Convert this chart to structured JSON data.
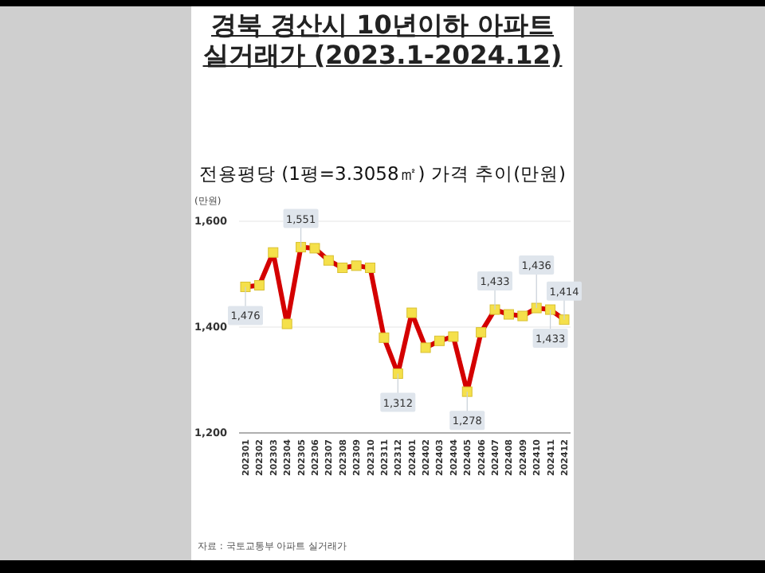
{
  "chart_data": {
    "type": "line",
    "title": "경북 경산시 10년이하 아파트 실거래가 (2023.1-2024.12)",
    "subtitle": "전용평당 (1평=3.3058㎡) 가격 추이(만원)",
    "ylabel": "(만원)",
    "categories": [
      "202301",
      "202302",
      "202303",
      "202304",
      "202305",
      "202306",
      "202307",
      "202308",
      "202309",
      "202310",
      "202311",
      "202312",
      "202401",
      "202402",
      "202403",
      "202404",
      "202405",
      "202406",
      "202407",
      "202408",
      "202409",
      "202410",
      "202411",
      "202412"
    ],
    "series": [
      {
        "color": "#d40000",
        "values": [
          1476,
          1479,
          1541,
          1406,
          1551,
          1549,
          1526,
          1512,
          1516,
          1512,
          1380,
          1312,
          1427,
          1361,
          1374,
          1382,
          1278,
          1390,
          1433,
          1424,
          1421,
          1436,
          1433,
          1414
        ],
        "value_labels": [
          "1,476",
          null,
          null,
          null,
          "1,551",
          null,
          null,
          null,
          null,
          null,
          null,
          "1,312",
          null,
          null,
          null,
          null,
          "1,278",
          null,
          "1,433",
          null,
          null,
          "1,436",
          "1,433",
          "1,414"
        ]
      }
    ],
    "marker": "square",
    "ylim": [
      1200,
      1600
    ],
    "yticks": [
      {
        "value": 1200,
        "label": "1,200"
      },
      {
        "value": 1400,
        "label": "1,400"
      },
      {
        "value": 1600,
        "label": "1,600"
      }
    ],
    "grid": "y",
    "annotations": [
      "자료 : 국토교통부 아파트 실거래가"
    ]
  }
}
